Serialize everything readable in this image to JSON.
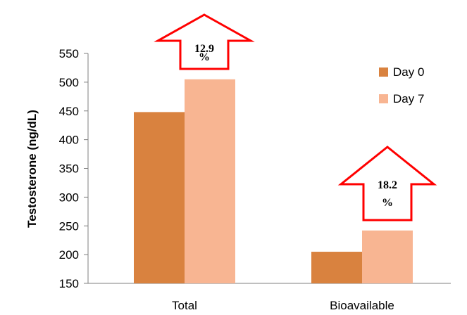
{
  "chart_data": {
    "type": "bar",
    "categories": [
      "Total",
      "Bioavailable"
    ],
    "series": [
      {
        "name": "Day 0",
        "values": [
          448,
          205
        ]
      },
      {
        "name": "Day 7",
        "values": [
          505,
          242
        ]
      }
    ],
    "title": "",
    "xlabel": "",
    "ylabel": "Testosterone (ng/dL)",
    "ylim": [
      150,
      550
    ],
    "yticks": [
      150,
      200,
      250,
      300,
      350,
      400,
      450,
      500,
      550
    ],
    "grid": false,
    "legend_position": "top-right",
    "annotations": [
      {
        "category": "Total",
        "line1": "12.9",
        "line2": "%"
      },
      {
        "category": "Bioavailable",
        "line1": "18.2",
        "line2": "%"
      }
    ],
    "colors": {
      "Day 0": "#d9823f",
      "Day 7": "#f8b592",
      "arrow_outline": "#ff0000"
    }
  }
}
